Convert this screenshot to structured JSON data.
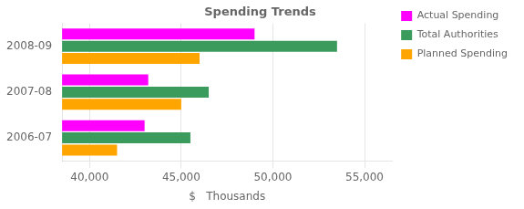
{
  "chart_data": {
    "type": "bar",
    "orientation": "horizontal",
    "title": "Spending Trends",
    "categories": [
      "2006-07",
      "2007-08",
      "2008-09"
    ],
    "series": [
      {
        "name": "Actual Spending",
        "color": "#FF00FF",
        "values": [
          43000,
          43200,
          49000
        ]
      },
      {
        "name": "Total Authorities",
        "color": "#3A9B5C",
        "values": [
          45500,
          46500,
          53500
        ]
      },
      {
        "name": "Planned Spending",
        "color": "#FFA500",
        "values": [
          41500,
          45000,
          46000
        ]
      }
    ],
    "xlabel": "$   Thousands",
    "xlim": [
      38500,
      56500
    ],
    "xticks": [
      {
        "value": 40000,
        "label": "40,000"
      },
      {
        "value": 45000,
        "label": "45,000"
      },
      {
        "value": 50000,
        "label": "50,000"
      },
      {
        "value": 55000,
        "label": "55,000"
      }
    ],
    "grid": true,
    "legend": "right"
  }
}
